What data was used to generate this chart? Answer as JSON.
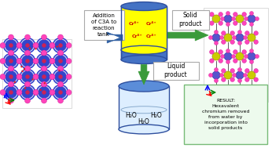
{
  "bg_color": "#ffffff",
  "cylinder_top_color": "#4472c4",
  "cylinder_body_yellow": "#ffff00",
  "cylinder_outline": "#2e4f9e",
  "beaker_top_color": "#5b8dd9",
  "beaker_body_color": "#ddeeff",
  "beaker_outline": "#2e4f9e",
  "arrow_blue_color": "#2e5fa3",
  "arrow_green_color": "#3a9a3a",
  "text_cr_color": "#cc0000",
  "box_addition_text": "Addition\nof C3A to\nreaction\ntank",
  "box_solid_text": "Solid\nproduct",
  "box_liquid_text": "Liquid\nproduct",
  "box_result_text": "RESULT:\nHexavalent\nchromium removed\nfrom water by\nincorporation into\nsolid products",
  "left_mol_bg": "#ffffff",
  "right_mol_bg": "#ffffff",
  "blue_atom": "#3344cc",
  "pink_atom": "#ff44bb",
  "yellow_atom": "#cccc00",
  "white_atom": "#ffffff",
  "red_atom": "#dd2222"
}
